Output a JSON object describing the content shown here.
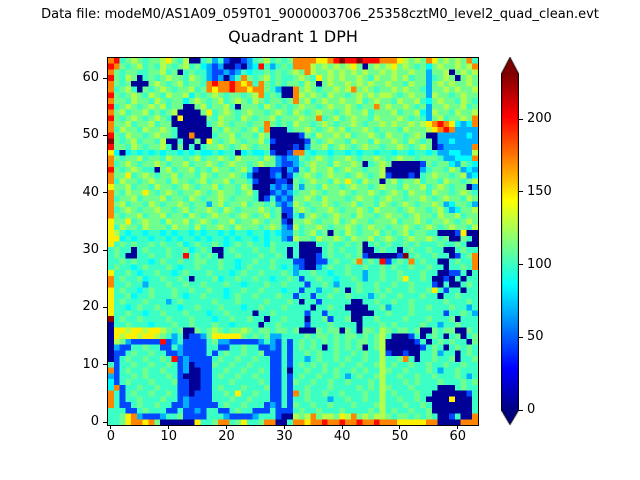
{
  "header": {
    "data_file_label": "Data file: modeM0/AS1A09_059T01_9000003706_25358cztM0_level2_quad_clean.evt"
  },
  "chart_data": {
    "type": "heatmap",
    "title": "Quadrant 1 DPH",
    "xlabel": "",
    "ylabel": "",
    "x_ticks": [
      0,
      10,
      20,
      30,
      40,
      50,
      60
    ],
    "y_ticks": [
      0,
      10,
      20,
      30,
      40,
      50,
      60
    ],
    "x_range": [
      -0.5,
      63.5
    ],
    "y_range": [
      -0.5,
      63.5
    ],
    "grid": false,
    "legend": "none",
    "colormap": "jet",
    "colorbar": {
      "position": "right",
      "ticks": [
        0,
        50,
        100,
        150,
        200
      ],
      "vmin": 0,
      "vmax": 231,
      "extend": "both"
    },
    "heatmap": {
      "size": [
        64,
        64
      ],
      "value_encoding": {
        "0": 5,
        "1": 45,
        "2": 68,
        "3": 86,
        "4": 100,
        "5": 112,
        "6": 127,
        "7": 148,
        "8": 172,
        "9": 200,
        "A": 228
      },
      "rows_top_to_bottom": [
        "894565455675460045241001245645458888778 9A99A9998887656587565658",
        "9854564546545645321200102394245488865656567505656756545356556568",
        "8545544556450454421121243445454565865565656565565655655255605656",
        "9546504545655465421202485456454456547565655654655656455245650565",
        "8545000565456455489889878485454554650565565656556554655256565565",
        "8456405456545564587889887885420085654556568565455656554255656556",
        "9545654654655635456545545684540086565465545656566545655265545655",
        "8554655465455356545645654654554585645655655645655465564356554654",
        "9456545656455005645564055546545456554565565455856556545255655645",
        "8564556454560000574565456554565465456554565564555645563265546556",
        "9545654565407000054655465455645556558456456554655565454256455658",
        "8556455645500000045654554558545465545654556545565655656789873238",
        "8465546556540000005465545648000455654565645565455546555678982222",
        "9546554565540080004556455465000001546556564556546554565002222232",
        "A545645546004005075456545564100000154565546554655654654502232222",
        "9554654556405040455654565455000010255645654565545565456501222228",
        "7303434343443434334344034334100188434434434344344344344342233226",
        "8545564554655456455654655546521225456545565455654565545554223338",
        "8456545565455645565456554565521124565546556504565000001545532543",
        "9545654405645564546554564100110215465564565545560000002455465232",
        "8557456545564554654556542000120145654565545654561000104565545623",
        "8465545655465545645564554100011054565546575465505645564554655456",
        "7556455465545654556455465000212152554655456554565546556456545502",
        "8546557545654556545655456400121245565455654556545654655465545654",
        "8455645556455465455654555401412155654655545655456554556545655465",
        "8564554654556545525645564554521265455654556455465456545565235542",
        "8456545565545645565465455565451156545565455654655545655456423556",
        "8545564556455465456554565456450142565456554655456554565546556455",
        "7557456554655645654556455654551055654556456554555645565455654565",
        "7465546555465546455654655545652164556545565456554556545654565546",
        "7643443443434434344343443443432254564505465455645456455440001700",
        "7734344344343443434434344343442165546556546556456545655654500540",
        "7454544545445345445434545443544440004454454504545445454445445400",
        "4544045444544534540045444544544040000454544500454404544544004544",
        "4540044544544945454044544454454040001454454510000 01A4544 54401458",
        "4454544345445445544544344544544411001145445845491454845440045448",
        "4544345444543445444544345444543421002454454454454544544544044548",
        "7445434454434544454443454454445424454434454424454454445440011404",
        "8454453445445404445344544544344541445443445424454457445400104044",
        "8445442444544544544454434445445444144542444544544544544410400454",
        "7454434544454454454434454454443441442445404544545444544574144044",
        "7445344544454344544434544544454414414454454442454454445440445444",
        "7454445444245444445444544445444540441444440044544544544444544454",
        "7443454454443445444544434454445444404454400004452444544544454424",
        "7445443445444544434454444044544444144144440000445444544444144542",
        "A454454444544454443445445440445444044514450044544445444544450444",
        "0445444344454454445443444404454444144454444044454544445442445444",
        "0776776776545005456545565455455450005455054055465455450054550054",
        "0767767765424011257777754545224444545545455454564000140454045045",
        "0652111119124111145221111124214145454545454554560000014045454405",
        "0211445441142111144114454411214145454045454504560000001454045454",
        "0114544544112111141454454451114144545445445454461001004452440454",
        "0145445445491211114544544544114144245445454454464458404454450445",
        "4144544544541201115445445444114145454544544544564544544544544544",
        "8145445445441200114454454454114044544545445454465445444542445444",
        "2144545444541000114544544544114145445445424544564454454454445424",
        "3145444544451100114445444454114154454454454445464445454445444545",
        "3814454454441100114544454445114144544454444545465444544440004544",
        "8414544544541101114454744544114184544544544454464544454400000014",
        "8414454445441211114445445444114144544424454454464454454000070004",
        "8411454454411211111454454441214154454454445444564445445400000004",
        "4441145444114112144114544111411145445444544445464544544500000004",
        "4457821112445111144421111244410065685665768565665455454540014008",
        "4457887850000007445884574458800488788988988988988877777880000888"
      ]
    }
  }
}
